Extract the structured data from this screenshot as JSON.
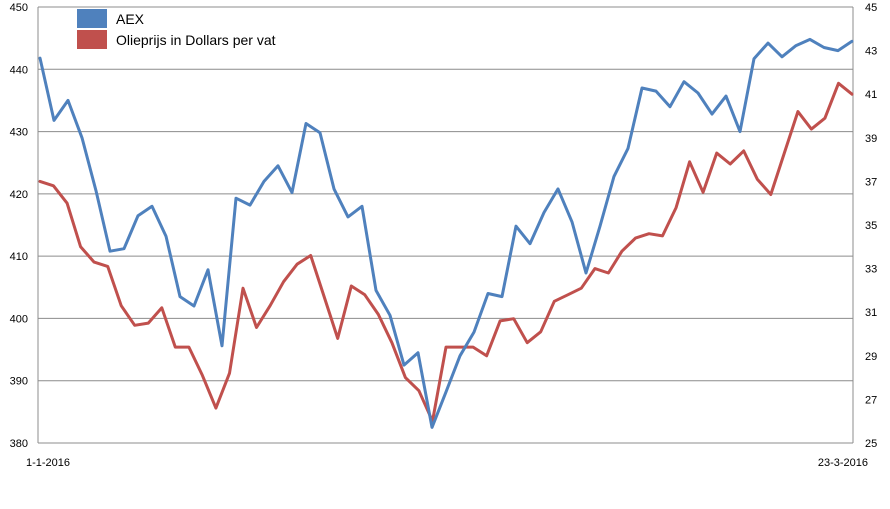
{
  "chart_data": {
    "type": "line",
    "x_labels": [
      "1-1-2016",
      "23-3-2016"
    ],
    "y_left": {
      "ticks": [
        380,
        390,
        400,
        410,
        420,
        430,
        440,
        450
      ],
      "range": [
        380,
        450
      ]
    },
    "y_right": {
      "ticks": [
        25,
        27,
        29,
        31,
        33,
        35,
        37,
        39,
        41,
        43,
        45
      ],
      "range": [
        25,
        45
      ]
    },
    "grid": true,
    "legend_position": "top-left",
    "series": [
      {
        "name": "AEX",
        "axis": "left",
        "color": "#4f81bd",
        "values": [
          441.8,
          431.8,
          435.0,
          429.0,
          420.5,
          410.8,
          411.2,
          416.5,
          418.0,
          413.2,
          403.5,
          402.0,
          407.8,
          395.6,
          419.3,
          418.2,
          422.0,
          424.5,
          420.2,
          431.3,
          429.8,
          420.8,
          416.3,
          418.0,
          404.5,
          400.5,
          392.5,
          394.5,
          382.5,
          388.2,
          394.0,
          397.8,
          404.0,
          403.5,
          414.8,
          412.0,
          417.0,
          420.8,
          415.5,
          407.3,
          414.8,
          422.8,
          427.3,
          437.0,
          436.5,
          434.0,
          438.0,
          436.2,
          432.8,
          435.7,
          430.0,
          441.7,
          444.2,
          442.0,
          443.8,
          444.8,
          443.5,
          443.0,
          444.5
        ]
      },
      {
        "name": "Olieprijs in Dollars per vat",
        "axis": "right",
        "color": "#c0504d",
        "values": [
          37.0,
          36.8,
          36.0,
          34.0,
          33.3,
          33.1,
          31.3,
          30.4,
          30.5,
          31.2,
          29.4,
          29.4,
          28.1,
          26.6,
          28.2,
          32.1,
          30.3,
          31.3,
          32.4,
          33.2,
          33.6,
          31.7,
          29.8,
          32.2,
          31.8,
          30.9,
          29.6,
          28.0,
          27.4,
          26.0,
          29.4,
          29.4,
          29.4,
          29.0,
          30.6,
          30.7,
          29.6,
          30.1,
          31.5,
          31.8,
          32.1,
          33.0,
          32.8,
          33.8,
          34.4,
          34.6,
          34.5,
          35.8,
          37.9,
          36.5,
          38.3,
          37.8,
          38.4,
          37.1,
          36.4,
          38.3,
          40.2,
          39.4,
          39.9,
          41.5,
          41.0
        ]
      }
    ]
  }
}
